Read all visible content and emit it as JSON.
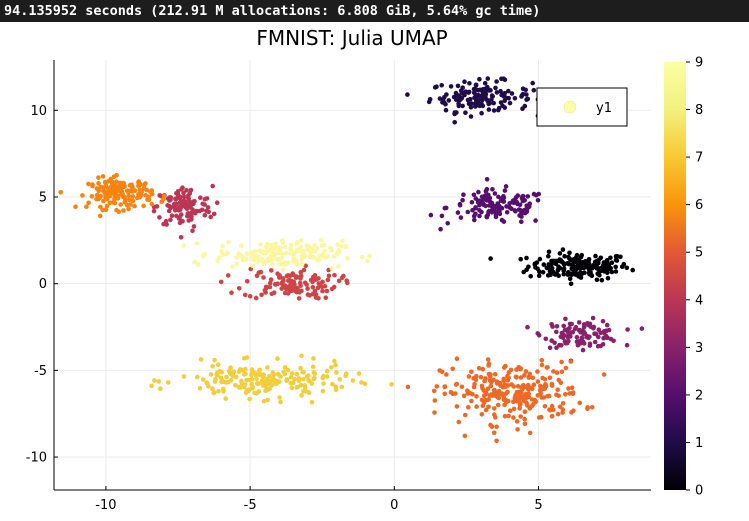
{
  "terminal": {
    "timing_text": "94.135952 seconds (212.91 M allocations: 6.808 GiB, 5.64% gc time)"
  },
  "chart_data": {
    "type": "scatter",
    "title": "FMNIST: Julia UMAP",
    "xlabel": "",
    "ylabel": "",
    "xlim": [
      -11.8,
      8.9
    ],
    "ylim": [
      -11.9,
      12.9
    ],
    "xticks": [
      -10,
      -5,
      0,
      5
    ],
    "xtick_labels": [
      "-10",
      "-5",
      "0",
      "5"
    ],
    "yticks": [
      -10,
      -5,
      0,
      5,
      10
    ],
    "ytick_labels": [
      "-10",
      "-5",
      "0",
      "5",
      "10"
    ],
    "grid": true,
    "legend": {
      "position": "top-right",
      "entries": [
        "y1"
      ],
      "marker_color": "#fcfea4"
    },
    "colorbar": {
      "colormap": "inferno",
      "range": [
        0,
        9
      ],
      "ticks": [
        0,
        1,
        2,
        3,
        4,
        5,
        6,
        7,
        8,
        9
      ],
      "tick_labels": [
        "0",
        "1",
        "2",
        "3",
        "4",
        "5",
        "6",
        "7",
        "8",
        "9"
      ]
    },
    "clusters": [
      {
        "class": 0,
        "color": "#000004",
        "center": [
          6.4,
          1.0
        ],
        "spread": [
          1.6,
          0.7
        ],
        "count": 180
      },
      {
        "class": 1,
        "color": "#1f0c48",
        "center": [
          3.0,
          10.8
        ],
        "spread": [
          1.6,
          0.8
        ],
        "count": 140
      },
      {
        "class": 2,
        "color": "#550f6d",
        "center": [
          3.6,
          4.4
        ],
        "spread": [
          1.6,
          0.9
        ],
        "count": 130
      },
      {
        "class": 3,
        "color": "#88226a",
        "center": [
          6.5,
          -2.9
        ],
        "spread": [
          1.2,
          0.7
        ],
        "count": 110
      },
      {
        "class": 4,
        "color": "#ba3655",
        "center": [
          -7.3,
          4.4
        ],
        "spread": [
          0.9,
          1.1
        ],
        "count": 120
      },
      {
        "class": 5,
        "color": "#cf4446",
        "center": [
          -3.6,
          0.0
        ],
        "spread": [
          1.5,
          0.8
        ],
        "count": 120
      },
      {
        "class": 6,
        "color": "#ed6925",
        "center": [
          4.1,
          -6.3
        ],
        "spread": [
          2.2,
          1.6
        ],
        "count": 260
      },
      {
        "class": 7,
        "color": "#f78311",
        "center": [
          -9.5,
          5.2
        ],
        "spread": [
          1.0,
          0.8
        ],
        "count": 150
      },
      {
        "class": 8,
        "color": "#f3cd3a",
        "center": [
          -4.5,
          -5.6
        ],
        "spread": [
          2.7,
          0.9
        ],
        "count": 200
      },
      {
        "class": 9,
        "color": "#fcf6a0",
        "center": [
          -4.0,
          1.7
        ],
        "spread": [
          2.0,
          0.7
        ],
        "count": 170
      }
    ]
  }
}
